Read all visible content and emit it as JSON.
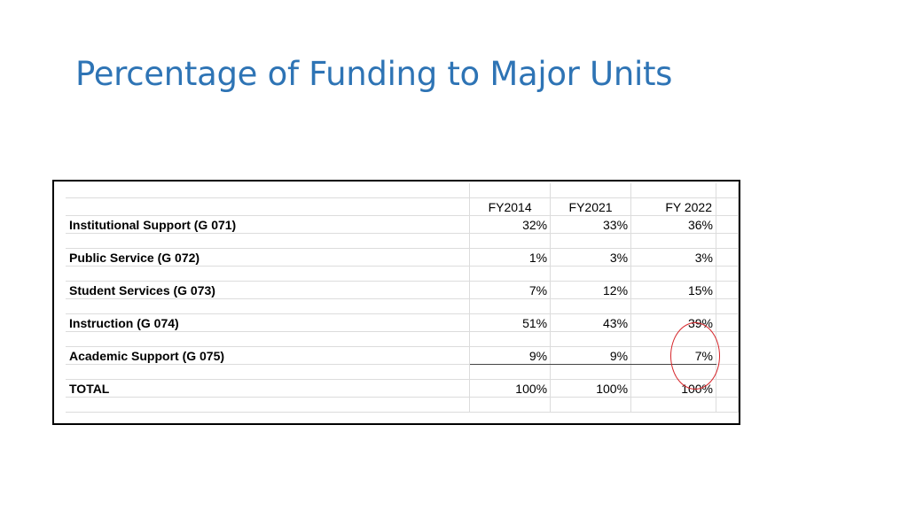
{
  "title": "Percentage of Funding to Major Units",
  "table": {
    "columns": [
      "FY2014",
      "FY2021",
      "FY 2022"
    ],
    "rows": [
      {
        "label": "Institutional Support (G 071)",
        "values": [
          "32%",
          "33%",
          "36%"
        ]
      },
      {
        "label": "Public Service (G 072)",
        "values": [
          "1%",
          "3%",
          "3%"
        ]
      },
      {
        "label": "Student Services (G 073)",
        "values": [
          "7%",
          "12%",
          "15%"
        ]
      },
      {
        "label": "Instruction (G 074)",
        "values": [
          "51%",
          "43%",
          "39%"
        ]
      },
      {
        "label": "Academic Support (G 075)",
        "values": [
          "9%",
          "9%",
          "7%"
        ]
      }
    ],
    "total": {
      "label": "TOTAL",
      "values": [
        "100%",
        "100%",
        "100%"
      ]
    }
  },
  "annotation": {
    "type": "red-circle",
    "marks": [
      "39%",
      "7%"
    ],
    "color": "#d6262b"
  },
  "colors": {
    "title": "#2e74b5",
    "frame": "#000000",
    "grid": "#dcdcdc"
  }
}
